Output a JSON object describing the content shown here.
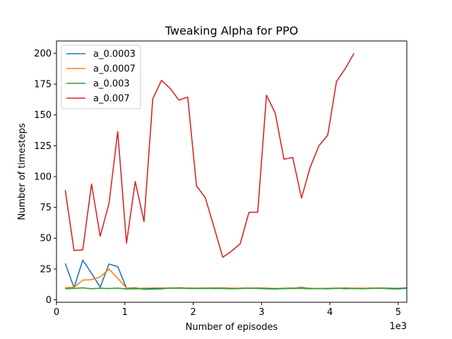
{
  "chart_data": {
    "type": "line",
    "title": "Tweaking Alpha for PPO",
    "xlabel": "Number of episodes",
    "ylabel": "Number of timesteps",
    "x_multiplier_label": "1e3",
    "xlim": [
      0,
      5.125
    ],
    "ylim": [
      -2,
      210
    ],
    "xticks": [
      0,
      1,
      2,
      3,
      4,
      5
    ],
    "yticks": [
      0,
      25,
      50,
      75,
      100,
      125,
      150,
      175,
      200
    ],
    "grid": false,
    "legend_position": "top-left",
    "series": [
      {
        "name": "a_0.0003",
        "color": "#1f77b4",
        "x": [
          0.128,
          0.256,
          0.384,
          0.512,
          0.64,
          0.768,
          0.896,
          1.024,
          1.152,
          1.28,
          1.408,
          1.536,
          1.664,
          1.792,
          1.92,
          2.048,
          2.176,
          2.304,
          2.432,
          2.56,
          2.688,
          2.816,
          2.944,
          3.072,
          3.2,
          3.328,
          3.456,
          3.584,
          3.712,
          3.84,
          3.968,
          4.096,
          4.224,
          4.352,
          4.48,
          4.608,
          4.736,
          4.864,
          4.992,
          5.12
        ],
        "y": [
          29.5,
          9.8,
          32.2,
          21.5,
          10.2,
          29.0,
          27.0,
          9.5,
          9.8,
          8.5,
          8.7,
          8.9,
          9.6,
          9.5,
          9.6,
          9.3,
          9.4,
          9.2,
          9.3,
          9.1,
          9.4,
          9.5,
          9.2,
          9.0,
          8.8,
          9.1,
          9.4,
          10.1,
          9.3,
          9.1,
          8.9,
          9.4,
          9.0,
          9.3,
          9.1,
          9.5,
          9.6,
          9.0,
          8.8,
          9.4
        ]
      },
      {
        "name": "a_0.0007",
        "color": "#ff7f0e",
        "x": [
          0.128,
          0.256,
          0.384,
          0.512,
          0.64,
          0.768,
          0.896,
          1.024,
          1.152,
          1.28,
          1.408,
          1.536,
          1.664,
          1.792,
          1.92,
          2.048,
          2.176,
          2.304,
          2.432,
          2.56,
          2.688,
          2.816,
          2.944,
          3.072,
          3.2,
          3.328,
          3.456,
          3.584,
          3.712,
          3.84,
          3.968,
          4.096,
          4.224,
          4.352,
          4.48,
          4.608,
          4.736,
          4.864,
          4.992,
          5.12
        ],
        "y": [
          9.8,
          10.2,
          16.0,
          16.3,
          18.5,
          25.0,
          17.5,
          9.6,
          9.3,
          9.4,
          9.6,
          9.6,
          9.5,
          9.8,
          9.6,
          9.4,
          9.7,
          9.6,
          9.8,
          9.5,
          9.4,
          9.3,
          9.7,
          9.5,
          9.1,
          9.4,
          9.6,
          9.5,
          9.4,
          9.2,
          9.3,
          9.6,
          9.3,
          9.5,
          9.4,
          9.4,
          9.6,
          9.3,
          9.2,
          9.7
        ]
      },
      {
        "name": "a_0.003",
        "color": "#2ca02c",
        "x": [
          0.128,
          0.256,
          0.384,
          0.512,
          0.64,
          0.768,
          0.896,
          1.024,
          1.152,
          1.28,
          1.408,
          1.536,
          1.664,
          1.792,
          1.92,
          2.048,
          2.176,
          2.304,
          2.432,
          2.56,
          2.688,
          2.816,
          2.944,
          3.072,
          3.2,
          3.328,
          3.456,
          3.584,
          3.712,
          3.84,
          3.968,
          4.096,
          4.224,
          4.352,
          4.48,
          4.608,
          4.736,
          4.864,
          4.992,
          5.12
        ],
        "y": [
          9.0,
          9.3,
          9.7,
          9.0,
          9.4,
          9.1,
          9.5,
          8.8,
          9.0,
          8.9,
          9.1,
          9.2,
          9.5,
          9.6,
          9.2,
          9.3,
          9.1,
          9.4,
          9.2,
          9.0,
          9.1,
          9.4,
          9.3,
          9.2,
          9.0,
          9.1,
          9.3,
          9.2,
          9.0,
          9.1,
          9.3,
          9.2,
          9.6,
          9.1,
          9.0,
          9.3,
          9.5,
          9.4,
          9.3,
          9.5
        ]
      },
      {
        "name": "a_0.007",
        "color": "#d62728",
        "x": [
          0.128,
          0.256,
          0.384,
          0.512,
          0.64,
          0.768,
          0.896,
          1.024,
          1.152,
          1.28,
          1.408,
          1.536,
          1.664,
          1.792,
          1.92,
          2.048,
          2.176,
          2.304,
          2.432,
          2.56,
          2.688,
          2.816,
          2.944,
          3.072,
          3.2,
          3.328,
          3.456,
          3.584,
          3.712,
          3.84,
          3.968,
          4.096,
          4.224,
          4.352
        ],
        "y": [
          89.0,
          40.0,
          40.5,
          94.0,
          51.5,
          78.0,
          136.5,
          46.0,
          96.0,
          63.5,
          163.0,
          178.0,
          171.5,
          162.0,
          164.5,
          92.5,
          83.0,
          59.0,
          34.5,
          39.5,
          45.5,
          71.0,
          71.0,
          166.0,
          151.5,
          114.0,
          115.5,
          82.5,
          107.5,
          125.0,
          133.5,
          177.0,
          187.5,
          200.0
        ]
      }
    ]
  }
}
